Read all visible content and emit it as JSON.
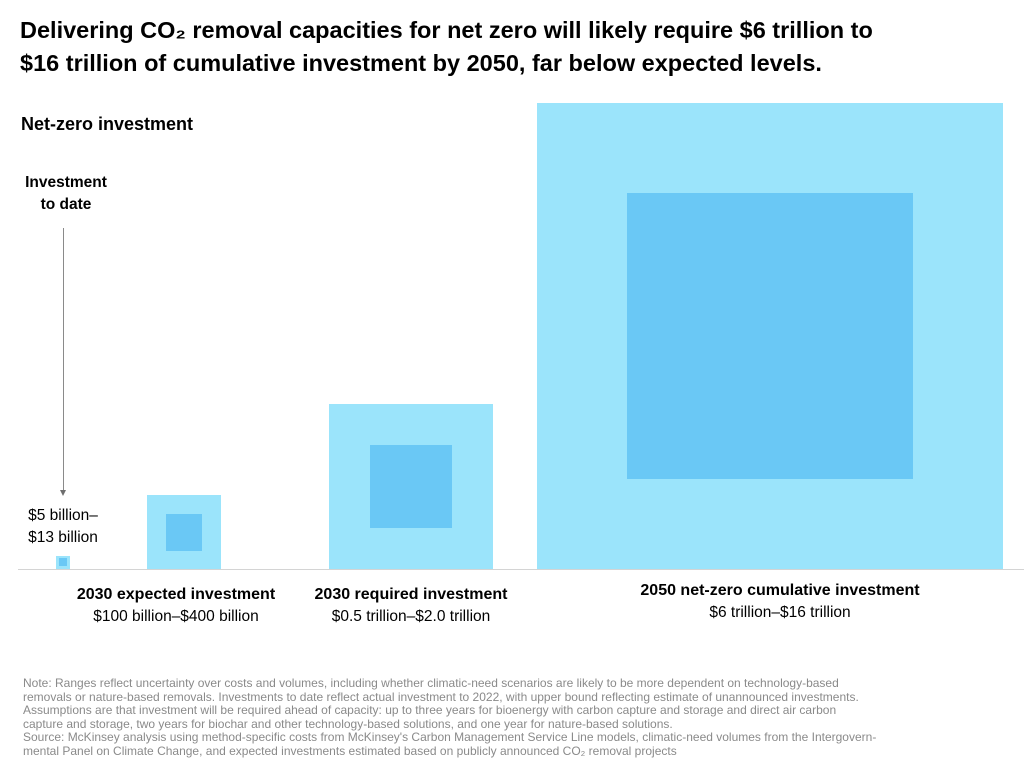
{
  "title": {
    "line1": "Delivering CO₂ removal capacities for net zero will likely require $6 trillion to",
    "line2": "$16 trillion of cumulative investment by 2050, far below expected levels."
  },
  "subtitle": "Net-zero investment",
  "colors": {
    "outer": "#9be4fb",
    "inner": "#6ac8f5",
    "text": "#000000",
    "note": "#8a8a8a"
  },
  "chart_data": {
    "type": "nested-square",
    "units": "US$ billion",
    "items": [
      {
        "id": "to-date",
        "label_lines": [
          "Investment",
          "to date"
        ],
        "range_lines": [
          "$5 billion–",
          "$13 billion"
        ],
        "low": 5,
        "high": 13
      },
      {
        "id": "2030-expected",
        "label": "2030 expected investment",
        "range": "$100 billion–$400 billion",
        "low": 100,
        "high": 400
      },
      {
        "id": "2030-required",
        "label": "2030 required investment",
        "range": "$0.5 trillion–$2.0 trillion",
        "low": 500,
        "high": 2000
      },
      {
        "id": "2050-net-zero",
        "label": "2050 net-zero cumulative investment",
        "range": "$6 trillion–$16 trillion",
        "low": 6000,
        "high": 16000
      }
    ]
  },
  "note": {
    "lines": [
      "Note: Ranges reflect uncertainty over costs and volumes, including whether climatic-need scenarios are likely to be more dependent on technology-based",
      "removals or nature-based removals. Investments to date reflect actual investment to 2022, with upper bound reflecting estimate of unannounced investments.",
      "Assumptions are that investment will be required ahead of capacity: up to three years for bioenergy with carbon capture and storage and direct air carbon",
      "capture and storage, two years for biochar and other technology-based solutions, and one year for nature-based solutions.",
      "Source: McKinsey analysis using method-specific costs from McKinsey's Carbon Management Service Line models, climatic-need volumes from the Intergovern-",
      "mental Panel on Climate Change, and expected investments estimated based on publicly announced CO₂ removal projects"
    ]
  }
}
